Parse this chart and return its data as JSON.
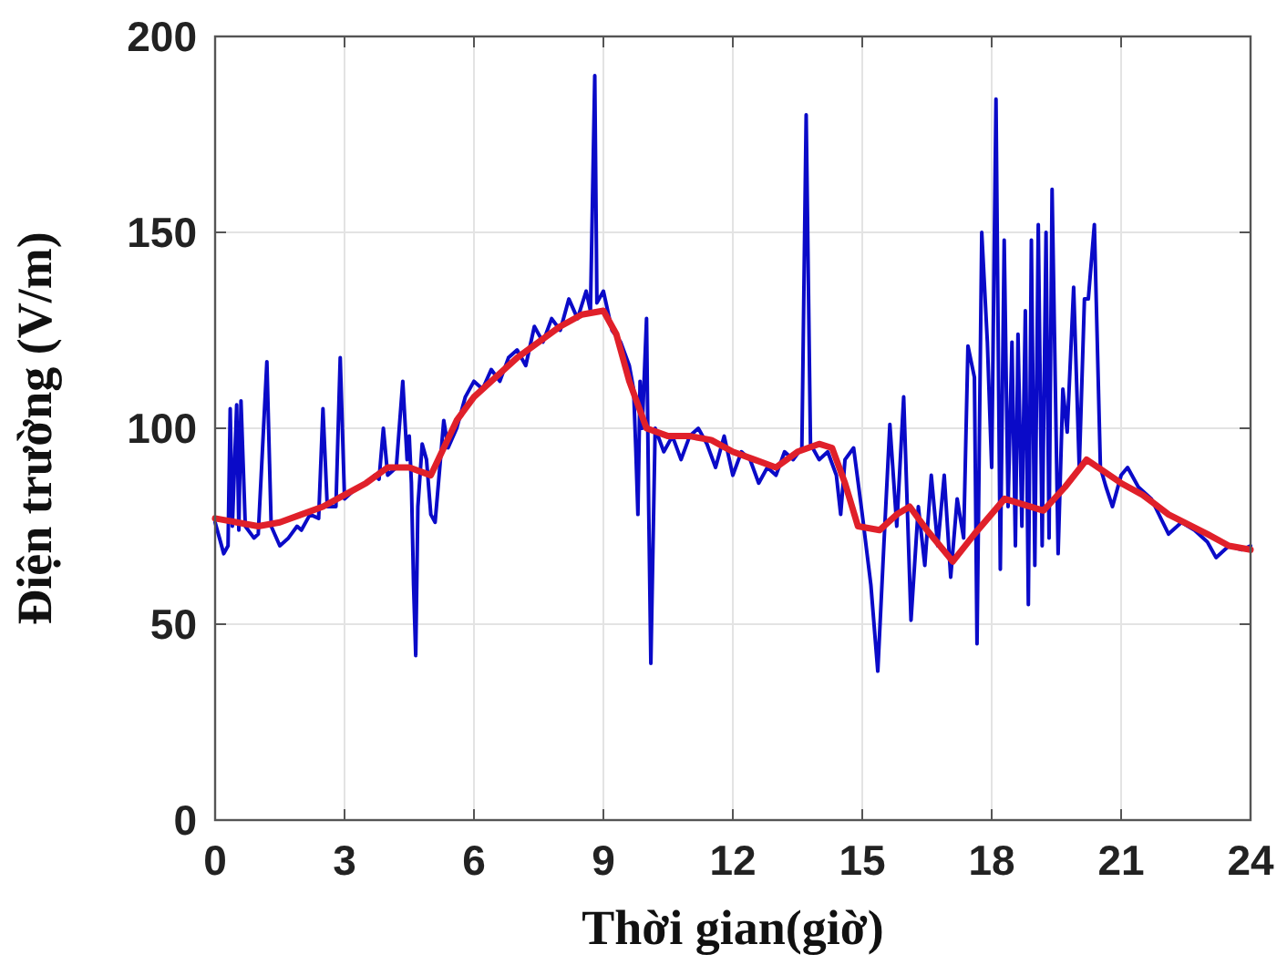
{
  "chart_data": {
    "type": "line",
    "xlabel": "Thời gian(giờ)",
    "ylabel": "Điện trường (V/m)",
    "xlim": [
      0,
      24
    ],
    "xticks": [
      0,
      3,
      6,
      9,
      12,
      15,
      18,
      21,
      24
    ],
    "ylim": [
      0,
      200
    ],
    "yticks": [
      0,
      50,
      100,
      150,
      200
    ],
    "grid": true,
    "marker": "none",
    "line_style": "solid",
    "series": [
      {
        "color": "#0a0ac8",
        "x": [
          0,
          0.1,
          0.2,
          0.3,
          0.35,
          0.4,
          0.5,
          0.55,
          0.6,
          0.7,
          0.9,
          1.0,
          1.2,
          1.3,
          1.5,
          1.7,
          1.9,
          2.0,
          2.2,
          2.4,
          2.5,
          2.6,
          2.8,
          2.9,
          3.0,
          3.2,
          3.5,
          3.7,
          3.8,
          3.9,
          4.0,
          4.2,
          4.35,
          4.45,
          4.5,
          4.55,
          4.6,
          4.65,
          4.7,
          4.8,
          4.9,
          5.0,
          5.1,
          5.3,
          5.4,
          5.6,
          5.8,
          6.0,
          6.2,
          6.4,
          6.6,
          6.8,
          7.0,
          7.2,
          7.4,
          7.6,
          7.8,
          8.0,
          8.2,
          8.4,
          8.6,
          8.7,
          8.8,
          8.85,
          9.0,
          9.2,
          9.4,
          9.6,
          9.7,
          9.75,
          9.8,
          9.85,
          9.9,
          10.0,
          10.05,
          10.1,
          10.2,
          10.4,
          10.6,
          10.8,
          11.0,
          11.2,
          11.4,
          11.6,
          11.8,
          12.0,
          12.2,
          12.4,
          12.6,
          12.8,
          13.0,
          13.2,
          13.4,
          13.6,
          13.7,
          13.8,
          14.0,
          14.2,
          14.4,
          14.5,
          14.6,
          14.8,
          15.0,
          15.2,
          15.36,
          15.5,
          15.64,
          15.8,
          15.96,
          16.13,
          16.3,
          16.45,
          16.6,
          16.75,
          16.9,
          17.05,
          17.2,
          17.35,
          17.45,
          17.6,
          17.66,
          17.77,
          17.9,
          18.0,
          18.1,
          18.2,
          18.29,
          18.38,
          18.47,
          18.55,
          18.61,
          18.7,
          18.78,
          18.85,
          18.92,
          19.0,
          19.08,
          19.17,
          19.26,
          19.33,
          19.4,
          19.54,
          19.65,
          19.75,
          19.9,
          20.03,
          20.15,
          20.24,
          20.38,
          20.52,
          20.65,
          20.8,
          21.0,
          21.15,
          21.4,
          21.7,
          22.1,
          22.4,
          22.7,
          23.0,
          23.2,
          23.5,
          23.8,
          24
        ],
        "values": [
          76,
          72,
          68,
          70,
          105,
          75,
          106,
          74,
          107,
          75,
          72,
          73,
          117,
          75,
          70,
          72,
          75,
          74,
          78,
          77,
          105,
          80,
          80,
          118,
          82,
          84,
          86,
          88,
          87,
          100,
          88,
          90,
          112,
          92,
          98,
          86,
          60,
          42,
          80,
          96,
          92,
          78,
          76,
          102,
          95,
          100,
          108,
          112,
          110,
          115,
          112,
          118,
          120,
          116,
          126,
          122,
          128,
          125,
          133,
          128,
          135,
          130,
          190,
          132,
          135,
          125,
          122,
          116,
          110,
          95,
          78,
          112,
          100,
          128,
          80,
          40,
          100,
          94,
          98,
          92,
          98,
          100,
          96,
          90,
          98,
          88,
          94,
          92,
          86,
          90,
          88,
          94,
          92,
          95,
          180,
          96,
          92,
          94,
          88,
          78,
          92,
          95,
          78,
          60,
          38,
          70,
          101,
          75,
          108,
          51,
          80,
          65,
          88,
          70,
          88,
          62,
          82,
          72,
          121,
          113,
          45,
          150,
          122,
          90,
          184,
          64,
          148,
          80,
          122,
          70,
          124,
          75,
          130,
          55,
          148,
          65,
          152,
          70,
          150,
          72,
          161,
          68,
          110,
          99,
          136,
          90,
          133,
          133,
          152,
          90,
          85,
          80,
          88,
          90,
          85,
          82,
          73,
          76,
          74,
          71,
          67,
          70,
          69,
          70
        ]
      },
      {
        "color": "#e0202a",
        "x": [
          0,
          0.5,
          1,
          1.5,
          2,
          2.5,
          3,
          3.5,
          4,
          4.5,
          5,
          5.3,
          5.6,
          6,
          6.5,
          7,
          7.5,
          8,
          8.5,
          9,
          9.3,
          9.6,
          10,
          10.5,
          11,
          11.5,
          12,
          12.5,
          13,
          13.5,
          14,
          14.3,
          14.6,
          14.9,
          15.4,
          15.8,
          16.1,
          16.5,
          17.1,
          17.6,
          18.3,
          19.2,
          19.7,
          20.2,
          21,
          21.5,
          22.1,
          23,
          23.5,
          24
        ],
        "values": [
          77,
          76,
          75,
          76,
          78,
          80,
          83,
          86,
          90,
          90,
          88,
          95,
          102,
          108,
          113,
          118,
          122,
          126,
          129,
          130,
          124,
          112,
          100,
          98,
          98,
          97,
          94,
          92,
          90,
          94,
          96,
          95,
          86,
          75,
          74,
          78,
          80,
          74,
          66,
          73,
          82,
          79,
          85,
          92,
          86,
          83,
          78,
          73,
          70,
          69
        ]
      }
    ]
  }
}
